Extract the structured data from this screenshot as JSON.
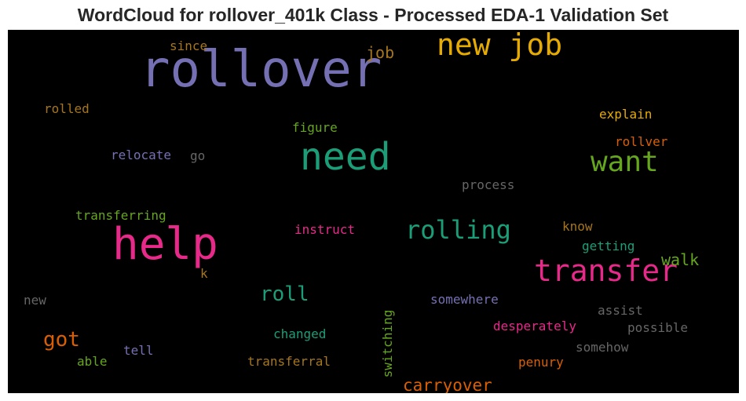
{
  "chart_data": {
    "type": "wordcloud",
    "title": "WordCloud for rollover_401k Class - Processed EDA-1 Validation Set",
    "background": "#000000",
    "words": [
      {
        "text": "rollover",
        "size": 64,
        "color": "#7570b3"
      },
      {
        "text": "help",
        "size": 56,
        "color": "#e7298a"
      },
      {
        "text": "need",
        "size": 48,
        "color": "#1b9e77"
      },
      {
        "text": "new job",
        "size": 38,
        "color": "#e6ab02"
      },
      {
        "text": "transfer",
        "size": 38,
        "color": "#e7298a"
      },
      {
        "text": "want",
        "size": 36,
        "color": "#66a61e"
      },
      {
        "text": "rolling",
        "size": 32,
        "color": "#1b9e77"
      },
      {
        "text": "roll",
        "size": 26,
        "color": "#1b9e77"
      },
      {
        "text": "got",
        "size": 26,
        "color": "#d95f02"
      },
      {
        "text": "carryover",
        "size": 21,
        "color": "#d95f02"
      },
      {
        "text": "walk",
        "size": 20,
        "color": "#66a61e"
      },
      {
        "text": "job",
        "size": 20,
        "color": "#a6761d"
      },
      {
        "text": "explain",
        "size": 16,
        "color": "#e6ab02"
      },
      {
        "text": "figure",
        "size": 16,
        "color": "#66a61e"
      },
      {
        "text": "rollver",
        "size": 16,
        "color": "#d95f02"
      },
      {
        "text": "rolled",
        "size": 16,
        "color": "#a6761d"
      },
      {
        "text": "since",
        "size": 16,
        "color": "#a6761d"
      },
      {
        "text": "relocate",
        "size": 16,
        "color": "#7570b3"
      },
      {
        "text": "go",
        "size": 16,
        "color": "#666666"
      },
      {
        "text": "process",
        "size": 16,
        "color": "#666666"
      },
      {
        "text": "transferring",
        "size": 16,
        "color": "#66a61e"
      },
      {
        "text": "instruct",
        "size": 16,
        "color": "#e7298a"
      },
      {
        "text": "know",
        "size": 16,
        "color": "#a6761d"
      },
      {
        "text": "getting",
        "size": 16,
        "color": "#1b9e77"
      },
      {
        "text": "k",
        "size": 16,
        "color": "#a6761d"
      },
      {
        "text": "new",
        "size": 16,
        "color": "#666666"
      },
      {
        "text": "switching",
        "size": 16,
        "color": "#66a61e",
        "vertical": true
      },
      {
        "text": "somewhere",
        "size": 16,
        "color": "#7570b3"
      },
      {
        "text": "assist",
        "size": 16,
        "color": "#666666"
      },
      {
        "text": "desperately",
        "size": 16,
        "color": "#e7298a"
      },
      {
        "text": "possible",
        "size": 16,
        "color": "#666666"
      },
      {
        "text": "changed",
        "size": 16,
        "color": "#1b9e77"
      },
      {
        "text": "somehow",
        "size": 16,
        "color": "#666666"
      },
      {
        "text": "tell",
        "size": 16,
        "color": "#7570b3"
      },
      {
        "text": "able",
        "size": 16,
        "color": "#66a61e"
      },
      {
        "text": "transferral",
        "size": 16,
        "color": "#a6761d"
      },
      {
        "text": "penury",
        "size": 16,
        "color": "#d95f02"
      }
    ]
  }
}
